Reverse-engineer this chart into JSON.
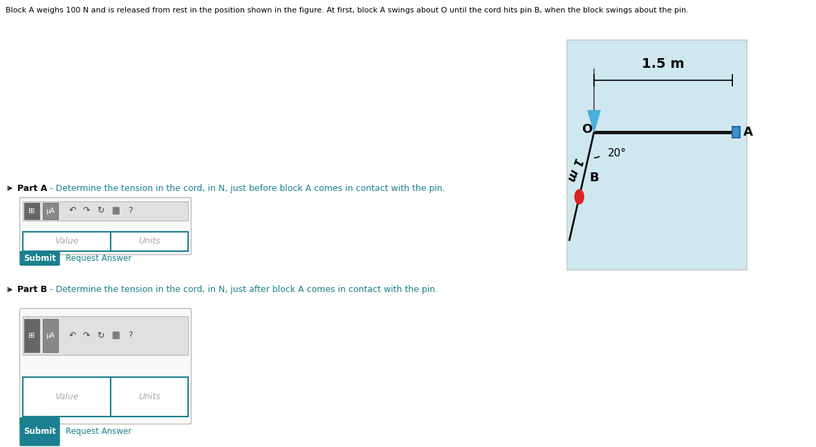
{
  "bg_color": "#cfe8ef",
  "white_bg": "#ffffff",
  "light_gray": "#f2f2f2",
  "header_text": "Block A weighs 100 N and is released from rest in the position shown in the figure. At first, block A swings about O until the cord hits pin B, when the block swings about the pin.",
  "header_fontsize": 8.0,
  "diagram_title": "1.5 m",
  "angle_label": "20°",
  "length_label": "1 m",
  "label_O": "O",
  "label_A": "A",
  "label_B": "B",
  "partA_bold": "Part A",
  "partA_text": " - Determine the tension in the cord, in N, just before block A comes in contact with the pin.",
  "partB_bold": "Part B",
  "partB_text": " - Determine the tension in the cord, in N, just after block A comes in contact with the pin.",
  "value_placeholder": "Value",
  "units_placeholder": "Units",
  "submit_color": "#1a7f8e",
  "submit_text": "Submit",
  "request_text": "Request Answer",
  "teal_color": "#1a7f8e",
  "blue_triangle": "#4ab0d9",
  "blue_block": "#3a8fcc",
  "red_pin": "#dd2222",
  "rod_color": "#111111",
  "separator_color": "#cccccc",
  "diag_border": "#cccccc"
}
